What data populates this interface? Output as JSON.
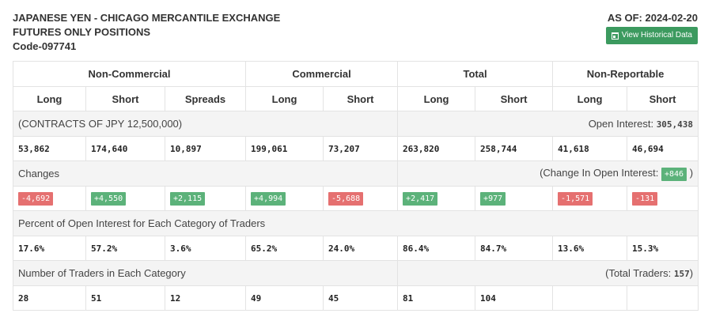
{
  "header": {
    "title_line1": "JAPANESE YEN - CHICAGO MERCANTILE EXCHANGE",
    "title_line2": "FUTURES ONLY POSITIONS",
    "code": "Code-097741",
    "as_of": "AS OF: 2024-02-20",
    "historical_button": "View Historical Data"
  },
  "groups": [
    "Non-Commercial",
    "Commercial",
    "Total",
    "Non-Reportable"
  ],
  "subheaders": [
    "Long",
    "Short",
    "Spreads",
    "Long",
    "Short",
    "Long",
    "Short",
    "Long",
    "Short"
  ],
  "contracts": {
    "label": "(CONTRACTS OF JPY 12,500,000)",
    "oi_label": "Open Interest: ",
    "oi_value": "305,438"
  },
  "positions": [
    "53,862",
    "174,640",
    "10,897",
    "199,061",
    "73,207",
    "263,820",
    "258,744",
    "41,618",
    "46,694"
  ],
  "changes": {
    "label": "Changes",
    "oi_label_prefix": "(Change In Open Interest: ",
    "oi_value": "+846",
    "oi_label_suffix": " )",
    "values": [
      "-4,692",
      "+4,550",
      "+2,115",
      "+4,994",
      "-5,688",
      "+2,417",
      "+977",
      "-1,571",
      "-131"
    ]
  },
  "percent": {
    "label": "Percent of Open Interest for Each Category of Traders",
    "values": [
      "17.6%",
      "57.2%",
      "3.6%",
      "65.2%",
      "24.0%",
      "86.4%",
      "84.7%",
      "13.6%",
      "15.3%"
    ]
  },
  "traders": {
    "label": "Number of Traders in Each Category",
    "total_prefix": "(Total Traders: ",
    "total_value": "157",
    "total_suffix": ")",
    "values": [
      "28",
      "51",
      "12",
      "49",
      "45",
      "81",
      "104",
      "",
      ""
    ]
  },
  "colors": {
    "positive": "#5cb27a",
    "negative": "#e57070",
    "button": "#3c9a5f"
  }
}
